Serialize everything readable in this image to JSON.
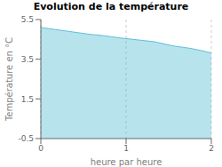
{
  "chart_data": {
    "type": "area",
    "title": "Evolution de la température",
    "xlabel": "heure par heure",
    "ylabel": "Température en °C",
    "x": [
      0.0,
      0.083,
      0.167,
      0.25,
      0.333,
      0.417,
      0.5,
      0.583,
      0.667,
      0.75,
      0.833,
      0.917,
      1.0,
      1.083,
      1.167,
      1.25,
      1.333,
      1.417,
      1.5,
      1.583,
      1.667,
      1.75,
      1.833,
      1.917,
      2.0
    ],
    "values": [
      5.1,
      5.05,
      5.0,
      4.95,
      4.9,
      4.85,
      4.8,
      4.75,
      4.72,
      4.68,
      4.63,
      4.58,
      4.54,
      4.5,
      4.46,
      4.42,
      4.38,
      4.3,
      4.22,
      4.15,
      4.1,
      4.05,
      3.98,
      3.9,
      3.82
    ],
    "color": "#60c0d8",
    "xlim": [
      0,
      2
    ],
    "ylim": [
      -0.5,
      5.5
    ],
    "xticks": [
      0,
      1,
      2
    ],
    "yticks": [
      -0.5,
      1.5,
      3.5,
      5.5
    ],
    "grid": "x"
  }
}
